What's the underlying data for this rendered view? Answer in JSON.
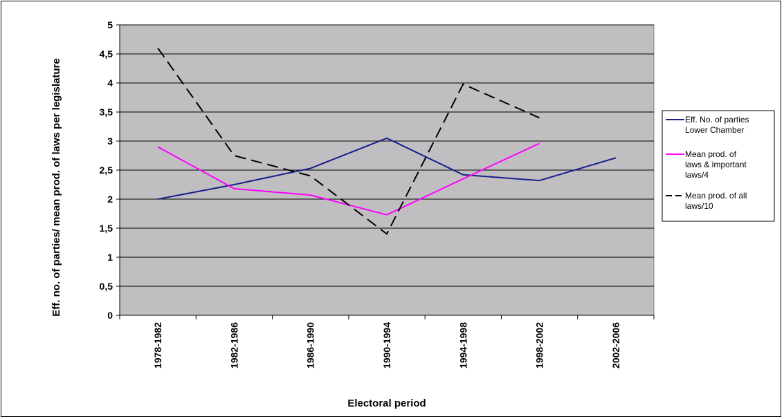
{
  "chart_data": {
    "type": "line",
    "title": "",
    "xlabel": "Electoral period",
    "ylabel": "Eff. no. of parties/ mean prod. of laws per legislature",
    "categories": [
      "1978-1982",
      "1982-1986",
      "1986-1990",
      "1990-1994",
      "1994-1998",
      "1998-2002",
      "2002-2006"
    ],
    "y_ticks": [
      "0",
      "0,5",
      "1",
      "1,5",
      "2",
      "2,5",
      "3",
      "3,5",
      "4",
      "4,5",
      "5"
    ],
    "ylim": [
      0,
      5
    ],
    "grid": true,
    "legend_position": "right",
    "plot_background": "#c0bec0",
    "series": [
      {
        "name_lines": [
          "Eff. No. of parties",
          "Lower Chamber"
        ],
        "color": "#1a1f8c",
        "dash": "solid",
        "values": [
          2.0,
          2.25,
          2.53,
          3.05,
          2.42,
          2.32,
          2.71
        ]
      },
      {
        "name_lines": [
          "Mean prod. of",
          "laws & important",
          "laws/4"
        ],
        "color": "#ff00ff",
        "dash": "solid",
        "values": [
          2.9,
          2.18,
          2.07,
          1.73,
          2.35,
          2.96,
          null
        ]
      },
      {
        "name_lines": [
          "Mean prod. of all",
          "laws/10"
        ],
        "color": "#000000",
        "dash": "dashed",
        "values": [
          4.6,
          2.75,
          2.4,
          1.4,
          3.98,
          3.4,
          null
        ]
      }
    ]
  }
}
